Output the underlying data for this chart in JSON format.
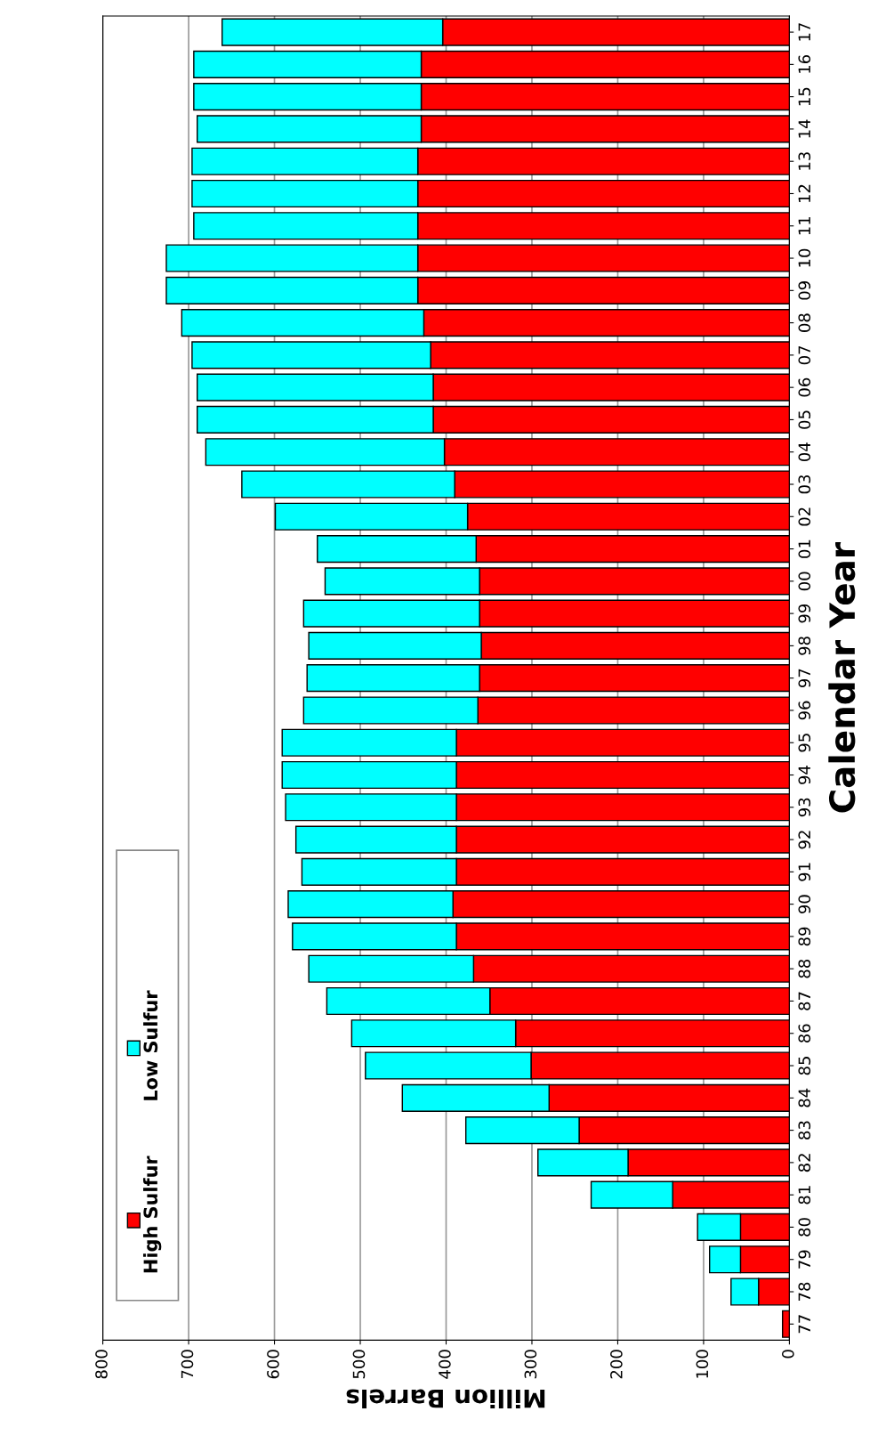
{
  "chart_data": {
    "type": "bar",
    "orientation": "horizontal",
    "stacked": true,
    "xlabel": "Million Barrels",
    "ylabel": "Calendar Year",
    "categories": [
      "17",
      "16",
      "15",
      "14",
      "13",
      "12",
      "11",
      "10",
      "09",
      "08",
      "07",
      "06",
      "05",
      "04",
      "03",
      "02",
      "01",
      "00",
      "99",
      "98",
      "97",
      "96",
      "95",
      "94",
      "93",
      "92",
      "91",
      "90",
      "89",
      "88",
      "87",
      "86",
      "85",
      "84",
      "83",
      "82",
      "81",
      "80",
      "79",
      "78",
      "77"
    ],
    "series": [
      {
        "name": "High Sulfur",
        "color": "#ff0000",
        "values": [
          404,
          429,
          429,
          429,
          433,
          433,
          433,
          433,
          433,
          426,
          418,
          415,
          415,
          402,
          390,
          375,
          365,
          361,
          361,
          359,
          361,
          363,
          388,
          388,
          388,
          388,
          388,
          392,
          388,
          368,
          349,
          319,
          301,
          280,
          245,
          188,
          136,
          57,
          57,
          36,
          8
        ]
      },
      {
        "name": "Low Sulfur",
        "color": "#00ffff",
        "values": [
          257,
          265,
          265,
          261,
          263,
          263,
          261,
          293,
          293,
          282,
          278,
          275,
          275,
          278,
          248,
          224,
          185,
          180,
          205,
          201,
          201,
          203,
          203,
          203,
          199,
          187,
          180,
          192,
          191,
          192,
          190,
          191,
          193,
          171,
          132,
          105,
          95,
          50,
          36,
          32,
          null
        ]
      }
    ],
    "xlim": [
      800,
      0
    ],
    "xticks": [
      800,
      700,
      600,
      500,
      400,
      300,
      200,
      100,
      0
    ],
    "grid": "x",
    "legend": "left"
  }
}
